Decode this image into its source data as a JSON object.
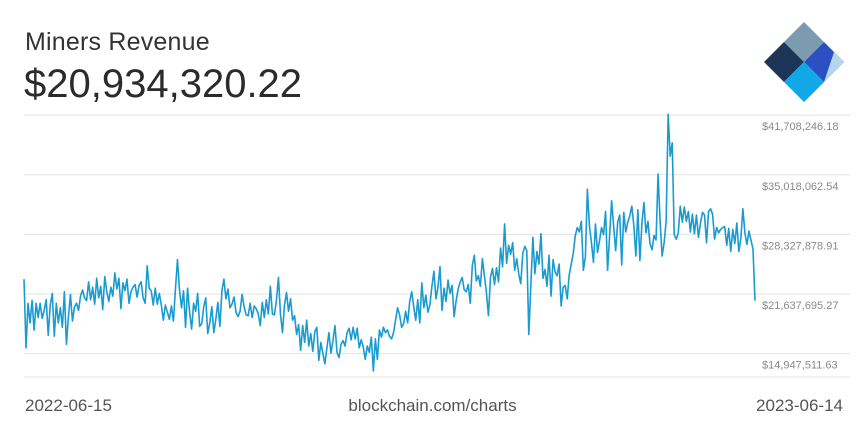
{
  "header": {
    "title": "Miners Revenue",
    "value": "$20,934,320.22"
  },
  "footer": {
    "start_date": "2022-06-15",
    "source": "blockchain.com/charts",
    "end_date": "2023-06-14"
  },
  "logo": {
    "icon": "blockchain-logo-icon"
  },
  "colors": {
    "line": "#1a9bd0",
    "grid": "#e3e3e3",
    "tick": "#8a8a8a"
  },
  "chart_data": {
    "type": "line",
    "title": "Miners Revenue",
    "x_range": [
      "2022-06-15",
      "2023-06-14"
    ],
    "ylim": [
      13000000,
      42400000
    ],
    "y_ticks": [
      14947511.63,
      21637695.27,
      28327878.91,
      35018062.54,
      41708246.18
    ],
    "y_tick_labels": [
      "$14,947,511.63",
      "$21,637,695.27",
      "$28,327,878.91",
      "$35,018,062.54",
      "$41,708,246.18"
    ],
    "grid": true,
    "series": [
      {
        "values": [
          23.3,
          15.6,
          20.6,
          18.4,
          20.9,
          17.6,
          20.6,
          19.0,
          20.6,
          18.9,
          19.8,
          21.0,
          17.0,
          20.4,
          21.7,
          16.9,
          20.6,
          18.4,
          20.1,
          17.9,
          21.9,
          16.0,
          19.1,
          21.6,
          18.6,
          20.2,
          20.6,
          19.8,
          21.4,
          22.1,
          21.2,
          20.9,
          23.0,
          21.0,
          22.4,
          20.5,
          23.4,
          21.2,
          22.5,
          19.9,
          23.6,
          21.9,
          20.8,
          22.4,
          21.4,
          24.0,
          22.2,
          23.4,
          20.0,
          22.9,
          22.0,
          23.3,
          20.6,
          21.9,
          22.4,
          22.7,
          21.3,
          22.6,
          23.0,
          21.2,
          20.6,
          24.8,
          22.3,
          22.0,
          20.4,
          22.3,
          20.5,
          21.7,
          20.4,
          18.7,
          20.4,
          19.6,
          18.8,
          20.3,
          18.6,
          22.2,
          25.5,
          22.1,
          20.1,
          22.0,
          17.9,
          22.3,
          19.6,
          17.7,
          20.6,
          19.7,
          21.7,
          18.0,
          18.3,
          20.2,
          21.2,
          17.2,
          18.4,
          20.2,
          17.3,
          18.8,
          20.7,
          18.0,
          22.0,
          23.3,
          21.1,
          22.2,
          20.1,
          20.5,
          21.3,
          19.6,
          19.1,
          19.7,
          21.6,
          20.2,
          19.3,
          19.2,
          20.6,
          19.0,
          20.3,
          20.0,
          19.4,
          18.1,
          20.7,
          19.0,
          21.0,
          19.4,
          22.5,
          19.4,
          19.3,
          20.9,
          23.5,
          19.4,
          17.3,
          20.4,
          21.8,
          19.7,
          21.1,
          18.7,
          19.2,
          17.1,
          18.2,
          15.3,
          18.1,
          16.2,
          18.7,
          15.8,
          17.2,
          15.2,
          17.4,
          17.9,
          14.2,
          16.2,
          15.0,
          13.8,
          15.6,
          17.3,
          15.0,
          16.4,
          18.1,
          15.1,
          14.5,
          16.0,
          16.4,
          15.8,
          17.3,
          17.8,
          16.5,
          17.9,
          16.6,
          17.8,
          15.6,
          16.5,
          15.7,
          14.3,
          15.8,
          15.1,
          16.8,
          13.0,
          16.6,
          14.3,
          17.6,
          16.8,
          17.9,
          17.3,
          17.6,
          16.9,
          16.6,
          17.3,
          18.7,
          20.1,
          19.3,
          17.9,
          18.3,
          19.7,
          18.4,
          20.8,
          21.9,
          20.2,
          18.7,
          21.0,
          18.4,
          22.9,
          20.1,
          21.5,
          19.6,
          20.4,
          22.5,
          24.2,
          21.1,
          22.4,
          24.7,
          19.8,
          22.3,
          20.8,
          23.2,
          21.7,
          22.6,
          19.1,
          20.9,
          22.2,
          23.0,
          23.5,
          22.1,
          21.9,
          22.7,
          20.6,
          24.8,
          26.0,
          23.1,
          23.7,
          22.5,
          25.6,
          23.7,
          21.8,
          19.2,
          23.5,
          24.5,
          22.7,
          24.6,
          23.0,
          26.8,
          24.7,
          29.5,
          25.1,
          27.1,
          26.1,
          27.4,
          24.3,
          25.6,
          23.9,
          22.8,
          26.2,
          27.0,
          26.5,
          17.1,
          22.6,
          28.0,
          23.9,
          26.4,
          25.0,
          28.4,
          23.4,
          24.4,
          22.5,
          26.0,
          21.4,
          25.5,
          24.1,
          23.7,
          25.0,
          20.3,
          22.4,
          22.6,
          21.1,
          23.8,
          25.0,
          26.2,
          28.2,
          29.1,
          28.6,
          29.8,
          24.3,
          25.8,
          33.4,
          29.3,
          27.4,
          25.2,
          29.5,
          26.3,
          27.6,
          29.1,
          28.3,
          30.9,
          24.3,
          28.2,
          32.1,
          29.2,
          26.5,
          29.7,
          30.5,
          24.9,
          30.8,
          28.6,
          29.7,
          30.4,
          31.5,
          29.3,
          25.9,
          31.1,
          25.4,
          29.6,
          31.9,
          28.5,
          29.8,
          27.3,
          26.6,
          28.2,
          27.7,
          35.1,
          29.8,
          25.9,
          27.4,
          29.8,
          41.8,
          37.1,
          38.6,
          28.3,
          27.8,
          28.5,
          31.5,
          29.7,
          31.4,
          29.8,
          30.9,
          28.6,
          30.6,
          28.4,
          30.5,
          28.0,
          29.6,
          30.8,
          30.5,
          27.4,
          30.9,
          31.2,
          30.6,
          27.8,
          29.1,
          28.5,
          28.9,
          29.1,
          29.2,
          27.1,
          29.0,
          26.4,
          28.9,
          27.3,
          29.6,
          26.4,
          27.9,
          31.2,
          28.5,
          27.2,
          28.7,
          27.7,
          26.7,
          20.9
        ],
        "unit": "$M (millions)"
      }
    ]
  }
}
